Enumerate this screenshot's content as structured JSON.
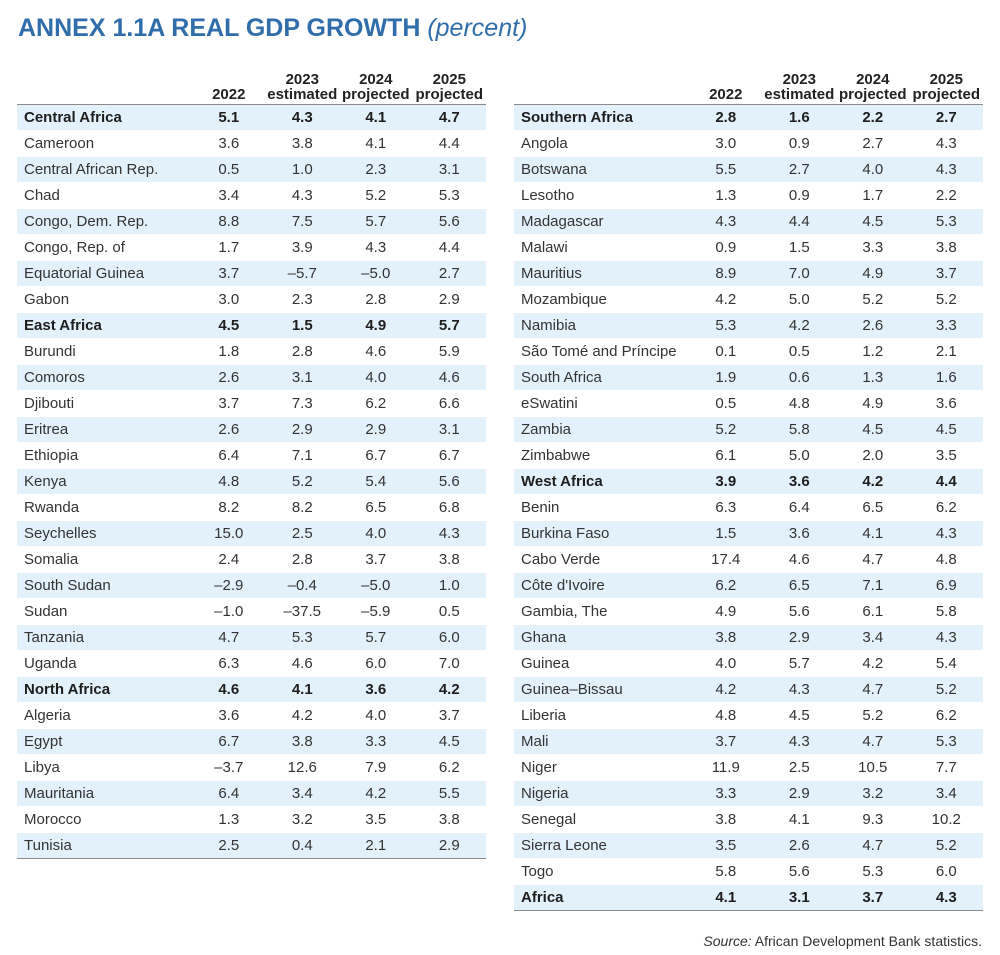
{
  "title": {
    "main": "ANNEX 1.1A REAL GDP GROWTH",
    "sub": "(percent)"
  },
  "columns": [
    {
      "line1": "",
      "line2": "2022"
    },
    {
      "line1": "2023",
      "line2": "estimated"
    },
    {
      "line1": "2024",
      "line2": "projected"
    },
    {
      "line1": "2025",
      "line2": "projected"
    }
  ],
  "left_table": [
    {
      "name": "Central Africa",
      "type": "region",
      "values": [
        "5.1",
        "4.3",
        "4.1",
        "4.7"
      ]
    },
    {
      "name": "Cameroon",
      "type": "country",
      "values": [
        "3.6",
        "3.8",
        "4.1",
        "4.4"
      ]
    },
    {
      "name": "Central African Rep.",
      "type": "country",
      "values": [
        "0.5",
        "1.0",
        "2.3",
        "3.1"
      ]
    },
    {
      "name": "Chad",
      "type": "country",
      "values": [
        "3.4",
        "4.3",
        "5.2",
        "5.3"
      ]
    },
    {
      "name": "Congo, Dem. Rep.",
      "type": "country",
      "values": [
        "8.8",
        "7.5",
        "5.7",
        "5.6"
      ]
    },
    {
      "name": "Congo, Rep. of",
      "type": "country",
      "values": [
        "1.7",
        "3.9",
        "4.3",
        "4.4"
      ]
    },
    {
      "name": "Equatorial Guinea",
      "type": "country",
      "values": [
        "3.7",
        "–5.7",
        "–5.0",
        "2.7"
      ]
    },
    {
      "name": "Gabon",
      "type": "country",
      "values": [
        "3.0",
        "2.3",
        "2.8",
        "2.9"
      ]
    },
    {
      "name": "East Africa",
      "type": "region",
      "values": [
        "4.5",
        "1.5",
        "4.9",
        "5.7"
      ]
    },
    {
      "name": "Burundi",
      "type": "country",
      "values": [
        "1.8",
        "2.8",
        "4.6",
        "5.9"
      ]
    },
    {
      "name": "Comoros",
      "type": "country",
      "values": [
        "2.6",
        "3.1",
        "4.0",
        "4.6"
      ]
    },
    {
      "name": "Djibouti",
      "type": "country",
      "values": [
        "3.7",
        "7.3",
        "6.2",
        "6.6"
      ]
    },
    {
      "name": "Eritrea",
      "type": "country",
      "values": [
        "2.6",
        "2.9",
        "2.9",
        "3.1"
      ]
    },
    {
      "name": "Ethiopia",
      "type": "country",
      "values": [
        "6.4",
        "7.1",
        "6.7",
        "6.7"
      ]
    },
    {
      "name": "Kenya",
      "type": "country",
      "values": [
        "4.8",
        "5.2",
        "5.4",
        "5.6"
      ]
    },
    {
      "name": "Rwanda",
      "type": "country",
      "values": [
        "8.2",
        "8.2",
        "6.5",
        "6.8"
      ]
    },
    {
      "name": "Seychelles",
      "type": "country",
      "values": [
        "15.0",
        "2.5",
        "4.0",
        "4.3"
      ]
    },
    {
      "name": "Somalia",
      "type": "country",
      "values": [
        "2.4",
        "2.8",
        "3.7",
        "3.8"
      ]
    },
    {
      "name": "South Sudan",
      "type": "country",
      "values": [
        "–2.9",
        "–0.4",
        "–5.0",
        "1.0"
      ]
    },
    {
      "name": "Sudan",
      "type": "country",
      "values": [
        "–1.0",
        "–37.5",
        "–5.9",
        "0.5"
      ]
    },
    {
      "name": "Tanzania",
      "type": "country",
      "values": [
        "4.7",
        "5.3",
        "5.7",
        "6.0"
      ]
    },
    {
      "name": "Uganda",
      "type": "country",
      "values": [
        "6.3",
        "4.6",
        "6.0",
        "7.0"
      ]
    },
    {
      "name": "North Africa",
      "type": "region",
      "values": [
        "4.6",
        "4.1",
        "3.6",
        "4.2"
      ]
    },
    {
      "name": "Algeria",
      "type": "country",
      "values": [
        "3.6",
        "4.2",
        "4.0",
        "3.7"
      ]
    },
    {
      "name": "Egypt",
      "type": "country",
      "values": [
        "6.7",
        "3.8",
        "3.3",
        "4.5"
      ]
    },
    {
      "name": "Libya",
      "type": "country",
      "values": [
        "–3.7",
        "12.6",
        "7.9",
        "6.2"
      ]
    },
    {
      "name": "Mauritania",
      "type": "country",
      "values": [
        "6.4",
        "3.4",
        "4.2",
        "5.5"
      ]
    },
    {
      "name": "Morocco",
      "type": "country",
      "values": [
        "1.3",
        "3.2",
        "3.5",
        "3.8"
      ]
    },
    {
      "name": "Tunisia",
      "type": "country",
      "values": [
        "2.5",
        "0.4",
        "2.1",
        "2.9"
      ]
    }
  ],
  "right_table": [
    {
      "name": "Southern Africa",
      "type": "region",
      "values": [
        "2.8",
        "1.6",
        "2.2",
        "2.7"
      ]
    },
    {
      "name": "Angola",
      "type": "country",
      "values": [
        "3.0",
        "0.9",
        "2.7",
        "4.3"
      ]
    },
    {
      "name": "Botswana",
      "type": "country",
      "values": [
        "5.5",
        "2.7",
        "4.0",
        "4.3"
      ]
    },
    {
      "name": "Lesotho",
      "type": "country",
      "values": [
        "1.3",
        "0.9",
        "1.7",
        "2.2"
      ]
    },
    {
      "name": "Madagascar",
      "type": "country",
      "values": [
        "4.3",
        "4.4",
        "4.5",
        "5.3"
      ]
    },
    {
      "name": "Malawi",
      "type": "country",
      "values": [
        "0.9",
        "1.5",
        "3.3",
        "3.8"
      ]
    },
    {
      "name": "Mauritius",
      "type": "country",
      "values": [
        "8.9",
        "7.0",
        "4.9",
        "3.7"
      ]
    },
    {
      "name": "Mozambique",
      "type": "country",
      "values": [
        "4.2",
        "5.0",
        "5.2",
        "5.2"
      ]
    },
    {
      "name": "Namibia",
      "type": "country",
      "values": [
        "5.3",
        "4.2",
        "2.6",
        "3.3"
      ]
    },
    {
      "name": "São Tomé and Príncipe",
      "type": "country",
      "values": [
        "0.1",
        "0.5",
        "1.2",
        "2.1"
      ]
    },
    {
      "name": "South Africa",
      "type": "country",
      "values": [
        "1.9",
        "0.6",
        "1.3",
        "1.6"
      ]
    },
    {
      "name": "eSwatini",
      "type": "country",
      "values": [
        "0.5",
        "4.8",
        "4.9",
        "3.6"
      ]
    },
    {
      "name": "Zambia",
      "type": "country",
      "values": [
        "5.2",
        "5.8",
        "4.5",
        "4.5"
      ]
    },
    {
      "name": "Zimbabwe",
      "type": "country",
      "values": [
        "6.1",
        "5.0",
        "2.0",
        "3.5"
      ]
    },
    {
      "name": "West Africa",
      "type": "region",
      "values": [
        "3.9",
        "3.6",
        "4.2",
        "4.4"
      ]
    },
    {
      "name": "Benin",
      "type": "country",
      "values": [
        "6.3",
        "6.4",
        "6.5",
        "6.2"
      ]
    },
    {
      "name": "Burkina Faso",
      "type": "country",
      "values": [
        "1.5",
        "3.6",
        "4.1",
        "4.3"
      ]
    },
    {
      "name": "Cabo Verde",
      "type": "country",
      "values": [
        "17.4",
        "4.6",
        "4.7",
        "4.8"
      ]
    },
    {
      "name": "Côte d'Ivoire",
      "type": "country",
      "values": [
        "6.2",
        "6.5",
        "7.1",
        "6.9"
      ]
    },
    {
      "name": "Gambia, The",
      "type": "country",
      "values": [
        "4.9",
        "5.6",
        "6.1",
        "5.8"
      ]
    },
    {
      "name": "Ghana",
      "type": "country",
      "values": [
        "3.8",
        "2.9",
        "3.4",
        "4.3"
      ]
    },
    {
      "name": "Guinea",
      "type": "country",
      "values": [
        "4.0",
        "5.7",
        "4.2",
        "5.4"
      ]
    },
    {
      "name": "Guinea–Bissau",
      "type": "country",
      "values": [
        "4.2",
        "4.3",
        "4.7",
        "5.2"
      ]
    },
    {
      "name": "Liberia",
      "type": "country",
      "values": [
        "4.8",
        "4.5",
        "5.2",
        "6.2"
      ]
    },
    {
      "name": "Mali",
      "type": "country",
      "values": [
        "3.7",
        "4.3",
        "4.7",
        "5.3"
      ]
    },
    {
      "name": "Niger",
      "type": "country",
      "values": [
        "11.9",
        "2.5",
        "10.5",
        "7.7"
      ]
    },
    {
      "name": "Nigeria",
      "type": "country",
      "values": [
        "3.3",
        "2.9",
        "3.2",
        "3.4"
      ]
    },
    {
      "name": "Senegal",
      "type": "country",
      "values": [
        "3.8",
        "4.1",
        "9.3",
        "10.2"
      ]
    },
    {
      "name": "Sierra Leone",
      "type": "country",
      "values": [
        "3.5",
        "2.6",
        "4.7",
        "5.2"
      ]
    },
    {
      "name": "Togo",
      "type": "country",
      "values": [
        "5.8",
        "5.6",
        "5.3",
        "6.0"
      ]
    },
    {
      "name": "Africa",
      "type": "region",
      "values": [
        "4.1",
        "3.1",
        "3.7",
        "4.3"
      ]
    }
  ],
  "source": {
    "label": "Source:",
    "text": " African Development Bank statistics."
  },
  "colors": {
    "title": "#2f6eab",
    "stripe": "#e3f1fa",
    "rule": "#8a8a8a"
  }
}
